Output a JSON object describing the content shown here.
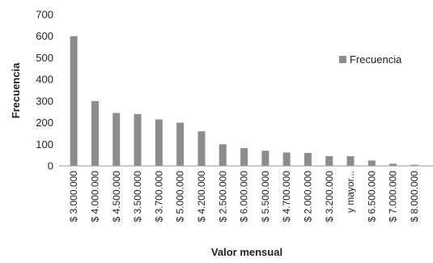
{
  "chart_data": {
    "type": "bar",
    "title": "",
    "xlabel": "Valor mensual",
    "ylabel": "Frecuencia",
    "ylim": [
      0,
      700
    ],
    "yticks": [
      0,
      100,
      200,
      300,
      400,
      500,
      600,
      700
    ],
    "grid": false,
    "legend_position": "right",
    "categories": [
      "$ 3.000.000",
      "$ 4.000.000",
      "$ 4.500.000",
      "$ 3.500.000",
      "$ 3.700.000",
      "$ 5.000.000",
      "$ 4.200.000",
      "$ 2.500.000",
      "$ 6.000.000",
      "$ 5.500.000",
      "$ 4.700.000",
      "$ 2.000.000",
      "$ 3.200.000",
      "y mayor...",
      "$ 6.500.000",
      "$ 7.000.000",
      "$ 8.000.000"
    ],
    "series": [
      {
        "name": "Frecuencia",
        "color": "#8c8c8c",
        "values": [
          600,
          300,
          245,
          240,
          215,
          200,
          160,
          100,
          82,
          70,
          62,
          60,
          45,
          45,
          25,
          10,
          5
        ]
      }
    ]
  }
}
